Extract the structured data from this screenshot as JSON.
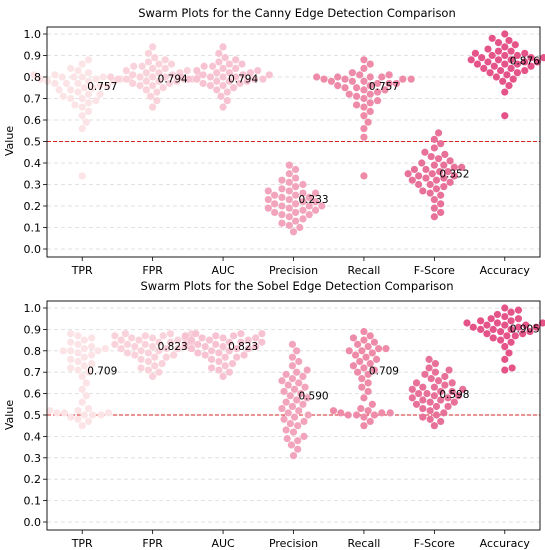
{
  "figure": {
    "ylabel": "Value",
    "reference_line": 0.5,
    "reference_color": "#d62728",
    "palette": [
      "#fbe3e6",
      "#f9d2db",
      "#f7c3d2",
      "#f2a4bc",
      "#ee8ba9",
      "#e8719a",
      "#e55489"
    ]
  },
  "chart_data": [
    {
      "type": "scatter",
      "kind": "swarm",
      "title": "Swarm Plots for the Canny Edge Detection Comparison",
      "xlabel": "",
      "ylabel": "Value",
      "ylim": [
        0.0,
        1.0
      ],
      "yticks": [
        "0.0",
        "0.1",
        "0.2",
        "0.3",
        "0.4",
        "0.5",
        "0.6",
        "0.7",
        "0.8",
        "0.9",
        "1.0"
      ],
      "grid": "y-dashed",
      "categories": [
        "TPR",
        "FPR",
        "AUC",
        "Precision",
        "Recall",
        "F-Score",
        "Accuracy"
      ],
      "means": [
        "0.757",
        "0.794",
        "0.794",
        "0.233",
        "0.757",
        "0.352",
        "0.876"
      ],
      "series": [
        {
          "category": "TPR",
          "values": [
            0.34,
            0.56,
            0.59,
            0.62,
            0.64,
            0.66,
            0.67,
            0.68,
            0.69,
            0.7,
            0.7,
            0.71,
            0.72,
            0.72,
            0.73,
            0.74,
            0.74,
            0.75,
            0.75,
            0.76,
            0.76,
            0.77,
            0.77,
            0.77,
            0.78,
            0.78,
            0.78,
            0.79,
            0.79,
            0.79,
            0.79,
            0.8,
            0.8,
            0.8,
            0.8,
            0.81,
            0.81,
            0.82,
            0.83,
            0.84,
            0.86,
            0.88
          ]
        },
        {
          "category": "FPR",
          "values": [
            0.66,
            0.69,
            0.71,
            0.73,
            0.74,
            0.75,
            0.76,
            0.76,
            0.77,
            0.77,
            0.78,
            0.78,
            0.78,
            0.79,
            0.79,
            0.79,
            0.79,
            0.8,
            0.8,
            0.8,
            0.8,
            0.81,
            0.81,
            0.81,
            0.82,
            0.82,
            0.82,
            0.83,
            0.83,
            0.84,
            0.84,
            0.85,
            0.85,
            0.86,
            0.86,
            0.87,
            0.88,
            0.89,
            0.91,
            0.94
          ]
        },
        {
          "category": "AUC",
          "values": [
            0.66,
            0.69,
            0.71,
            0.73,
            0.74,
            0.75,
            0.76,
            0.76,
            0.77,
            0.77,
            0.78,
            0.78,
            0.78,
            0.79,
            0.79,
            0.79,
            0.79,
            0.8,
            0.8,
            0.8,
            0.8,
            0.81,
            0.81,
            0.81,
            0.82,
            0.82,
            0.82,
            0.83,
            0.83,
            0.84,
            0.84,
            0.85,
            0.85,
            0.86,
            0.86,
            0.87,
            0.88,
            0.89,
            0.91,
            0.94
          ]
        },
        {
          "category": "Precision",
          "values": [
            0.08,
            0.1,
            0.11,
            0.12,
            0.13,
            0.14,
            0.15,
            0.16,
            0.16,
            0.17,
            0.17,
            0.18,
            0.18,
            0.19,
            0.19,
            0.2,
            0.2,
            0.2,
            0.21,
            0.21,
            0.22,
            0.22,
            0.23,
            0.23,
            0.24,
            0.24,
            0.25,
            0.25,
            0.26,
            0.26,
            0.27,
            0.27,
            0.28,
            0.29,
            0.3,
            0.31,
            0.32,
            0.33,
            0.35,
            0.37,
            0.39
          ]
        },
        {
          "category": "Recall",
          "values": [
            0.34,
            0.52,
            0.56,
            0.59,
            0.62,
            0.64,
            0.66,
            0.67,
            0.68,
            0.69,
            0.7,
            0.71,
            0.72,
            0.72,
            0.73,
            0.74,
            0.74,
            0.75,
            0.75,
            0.76,
            0.76,
            0.77,
            0.77,
            0.77,
            0.78,
            0.78,
            0.78,
            0.79,
            0.79,
            0.79,
            0.79,
            0.8,
            0.8,
            0.8,
            0.8,
            0.81,
            0.81,
            0.82,
            0.84,
            0.86,
            0.88
          ]
        },
        {
          "category": "F-Score",
          "values": [
            0.15,
            0.17,
            0.19,
            0.21,
            0.23,
            0.25,
            0.26,
            0.27,
            0.28,
            0.29,
            0.3,
            0.3,
            0.31,
            0.32,
            0.32,
            0.33,
            0.33,
            0.34,
            0.34,
            0.35,
            0.35,
            0.36,
            0.36,
            0.37,
            0.37,
            0.38,
            0.38,
            0.39,
            0.39,
            0.4,
            0.41,
            0.42,
            0.43,
            0.44,
            0.45,
            0.47,
            0.49,
            0.51,
            0.54
          ]
        },
        {
          "category": "Accuracy",
          "values": [
            0.62,
            0.73,
            0.76,
            0.78,
            0.79,
            0.8,
            0.81,
            0.82,
            0.82,
            0.83,
            0.83,
            0.84,
            0.84,
            0.85,
            0.85,
            0.86,
            0.86,
            0.86,
            0.87,
            0.87,
            0.87,
            0.88,
            0.88,
            0.88,
            0.89,
            0.89,
            0.89,
            0.9,
            0.9,
            0.9,
            0.91,
            0.91,
            0.92,
            0.92,
            0.93,
            0.94,
            0.95,
            0.96,
            0.97,
            0.98,
            1.0
          ]
        }
      ]
    },
    {
      "type": "scatter",
      "kind": "swarm",
      "title": "Swarm Plots for the Sobel Edge Detection Comparison",
      "xlabel": "",
      "ylabel": "Value",
      "ylim": [
        0.0,
        1.0
      ],
      "yticks": [
        "0.0",
        "0.1",
        "0.2",
        "0.3",
        "0.4",
        "0.5",
        "0.6",
        "0.7",
        "0.8",
        "0.9",
        "1.0"
      ],
      "grid": "y-dashed",
      "categories": [
        "TPR",
        "FPR",
        "AUC",
        "Precision",
        "Recall",
        "F-Score",
        "Accuracy"
      ],
      "means": [
        "0.709",
        "0.823",
        "0.823",
        "0.590",
        "0.709",
        "0.598",
        "0.905"
      ],
      "series": [
        {
          "category": "TPR",
          "values": [
            0.45,
            0.47,
            0.48,
            0.49,
            0.5,
            0.5,
            0.5,
            0.51,
            0.51,
            0.51,
            0.52,
            0.52,
            0.53,
            0.56,
            0.59,
            0.62,
            0.65,
            0.68,
            0.7,
            0.71,
            0.72,
            0.73,
            0.74,
            0.75,
            0.76,
            0.77,
            0.78,
            0.79,
            0.8,
            0.8,
            0.8,
            0.81,
            0.81,
            0.82,
            0.83,
            0.84,
            0.85,
            0.86,
            0.87,
            0.88
          ]
        },
        {
          "category": "FPR",
          "values": [
            0.68,
            0.7,
            0.71,
            0.72,
            0.73,
            0.74,
            0.75,
            0.76,
            0.77,
            0.77,
            0.78,
            0.78,
            0.79,
            0.79,
            0.8,
            0.8,
            0.81,
            0.81,
            0.81,
            0.82,
            0.82,
            0.82,
            0.83,
            0.83,
            0.83,
            0.84,
            0.84,
            0.84,
            0.85,
            0.85,
            0.85,
            0.86,
            0.86,
            0.86,
            0.87,
            0.87,
            0.87,
            0.88,
            0.88,
            0.88
          ]
        },
        {
          "category": "AUC",
          "values": [
            0.68,
            0.7,
            0.71,
            0.72,
            0.73,
            0.74,
            0.75,
            0.76,
            0.77,
            0.77,
            0.78,
            0.78,
            0.79,
            0.79,
            0.8,
            0.8,
            0.81,
            0.81,
            0.81,
            0.82,
            0.82,
            0.82,
            0.83,
            0.83,
            0.83,
            0.84,
            0.84,
            0.84,
            0.85,
            0.85,
            0.85,
            0.86,
            0.86,
            0.86,
            0.87,
            0.87,
            0.87,
            0.88,
            0.88,
            0.88
          ]
        },
        {
          "category": "Precision",
          "values": [
            0.31,
            0.34,
            0.36,
            0.38,
            0.39,
            0.4,
            0.42,
            0.43,
            0.45,
            0.46,
            0.47,
            0.48,
            0.49,
            0.5,
            0.51,
            0.52,
            0.53,
            0.54,
            0.55,
            0.56,
            0.57,
            0.58,
            0.59,
            0.6,
            0.61,
            0.62,
            0.63,
            0.64,
            0.65,
            0.66,
            0.67,
            0.68,
            0.69,
            0.7,
            0.71,
            0.73,
            0.75,
            0.77,
            0.8,
            0.83
          ]
        },
        {
          "category": "Recall",
          "values": [
            0.45,
            0.47,
            0.49,
            0.5,
            0.5,
            0.5,
            0.51,
            0.51,
            0.51,
            0.52,
            0.52,
            0.53,
            0.55,
            0.58,
            0.61,
            0.63,
            0.65,
            0.67,
            0.69,
            0.7,
            0.71,
            0.72,
            0.73,
            0.74,
            0.75,
            0.76,
            0.77,
            0.78,
            0.79,
            0.8,
            0.8,
            0.81,
            0.81,
            0.82,
            0.83,
            0.84,
            0.85,
            0.86,
            0.87,
            0.89
          ]
        },
        {
          "category": "F-Score",
          "values": [
            0.45,
            0.47,
            0.48,
            0.49,
            0.5,
            0.51,
            0.52,
            0.53,
            0.54,
            0.54,
            0.55,
            0.56,
            0.56,
            0.57,
            0.57,
            0.58,
            0.58,
            0.59,
            0.59,
            0.6,
            0.6,
            0.61,
            0.61,
            0.62,
            0.62,
            0.63,
            0.63,
            0.64,
            0.65,
            0.65,
            0.66,
            0.67,
            0.68,
            0.69,
            0.7,
            0.71,
            0.72,
            0.74,
            0.76
          ]
        },
        {
          "category": "Accuracy",
          "values": [
            0.71,
            0.72,
            0.76,
            0.79,
            0.82,
            0.84,
            0.85,
            0.86,
            0.87,
            0.87,
            0.88,
            0.88,
            0.89,
            0.89,
            0.9,
            0.9,
            0.9,
            0.91,
            0.91,
            0.91,
            0.92,
            0.92,
            0.92,
            0.93,
            0.93,
            0.93,
            0.94,
            0.94,
            0.95,
            0.95,
            0.96,
            0.97,
            0.98,
            0.99,
            1.0
          ]
        }
      ]
    }
  ]
}
